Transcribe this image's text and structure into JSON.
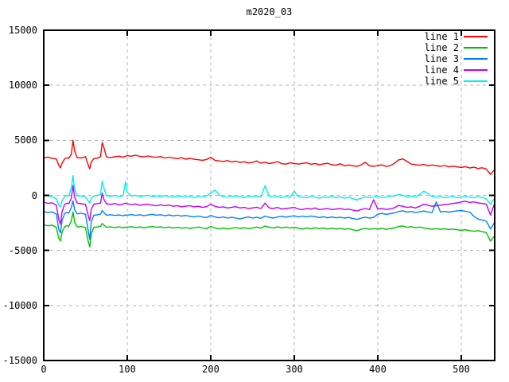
{
  "title": "m2020_03",
  "colors": {
    "background": "#ffffff",
    "border": "#000000",
    "grid": "#b4b4b4",
    "text": "#000000"
  },
  "chart_data": {
    "type": "line",
    "title": "m2020_03",
    "xlabel": "",
    "ylabel": "",
    "xlim": [
      0,
      540
    ],
    "ylim": [
      -15000,
      15000
    ],
    "xticks": [
      0,
      100,
      200,
      300,
      400,
      500
    ],
    "yticks": [
      -15000,
      -10000,
      -5000,
      0,
      5000,
      10000,
      15000
    ],
    "grid": "dashed",
    "legend_position": "top-right-inside",
    "x": [
      0,
      5,
      10,
      15,
      18,
      20,
      22,
      25,
      28,
      30,
      33,
      35,
      37,
      40,
      45,
      50,
      53,
      55,
      57,
      60,
      65,
      68,
      70,
      72,
      75,
      80,
      85,
      90,
      95,
      98,
      100,
      105,
      110,
      115,
      120,
      125,
      130,
      135,
      140,
      145,
      150,
      155,
      160,
      165,
      170,
      175,
      180,
      185,
      190,
      195,
      200,
      205,
      210,
      215,
      220,
      225,
      230,
      235,
      240,
      245,
      250,
      255,
      260,
      265,
      270,
      275,
      280,
      285,
      290,
      295,
      300,
      305,
      310,
      315,
      320,
      325,
      330,
      335,
      340,
      345,
      350,
      355,
      360,
      365,
      370,
      375,
      380,
      385,
      390,
      395,
      400,
      405,
      410,
      415,
      420,
      425,
      430,
      435,
      440,
      445,
      450,
      455,
      460,
      465,
      470,
      475,
      480,
      485,
      490,
      495,
      500,
      505,
      510,
      515,
      520,
      525,
      530,
      535,
      540
    ],
    "series": [
      {
        "name": "line 1",
        "color": "#ff0000",
        "values": [
          3400,
          3480,
          3370,
          3300,
          2750,
          2500,
          2950,
          3320,
          3420,
          3360,
          3750,
          5000,
          4050,
          3430,
          3400,
          3520,
          2800,
          2420,
          3050,
          3340,
          3400,
          3520,
          4800,
          4350,
          3500,
          3430,
          3520,
          3560,
          3480,
          3550,
          3620,
          3560,
          3650,
          3540,
          3500,
          3580,
          3490,
          3460,
          3530,
          3400,
          3470,
          3390,
          3340,
          3420,
          3290,
          3360,
          3280,
          3240,
          3190,
          3260,
          3460,
          3190,
          3130,
          3090,
          3160,
          3040,
          3110,
          2990,
          3060,
          2940,
          3010,
          3120,
          2930,
          3010,
          2890,
          2960,
          3070,
          2880,
          2840,
          2960,
          2900,
          2840,
          2910,
          2960,
          2830,
          2900,
          2790,
          2860,
          2920,
          2780,
          2740,
          2870,
          2690,
          2760,
          2700,
          2630,
          2770,
          3010,
          2690,
          2640,
          2710,
          2770,
          2630,
          2700,
          2910,
          3230,
          3310,
          3080,
          2840,
          2790,
          2740,
          2810,
          2690,
          2760,
          2700,
          2640,
          2710,
          2590,
          2660,
          2590,
          2540,
          2610,
          2490,
          2560,
          2440,
          2510,
          2390,
          1900,
          2360
        ]
      },
      {
        "name": "line 2",
        "color": "#00c000",
        "values": [
          -2680,
          -2760,
          -2700,
          -2900,
          -3900,
          -4150,
          -3300,
          -2850,
          -2750,
          -2820,
          -2300,
          -1500,
          -2400,
          -2880,
          -2820,
          -2920,
          -4100,
          -4700,
          -3500,
          -2900,
          -2860,
          -2800,
          -2550,
          -2700,
          -2900,
          -2860,
          -2920,
          -2860,
          -2940,
          -2880,
          -2900,
          -2840,
          -2920,
          -2860,
          -2950,
          -2880,
          -2820,
          -2900,
          -2860,
          -2940,
          -2880,
          -2960,
          -2900,
          -2980,
          -2920,
          -3000,
          -2940,
          -2880,
          -2960,
          -3020,
          -2820,
          -2960,
          -3040,
          -2960,
          -3060,
          -2980,
          -2920,
          -3000,
          -2940,
          -3020,
          -2960,
          -2880,
          -2980,
          -2780,
          -2900,
          -2960,
          -2860,
          -2950,
          -2880,
          -2960,
          -2900,
          -2990,
          -3060,
          -2960,
          -3040,
          -2940,
          -3020,
          -2960,
          -3060,
          -2980,
          -3060,
          -3000,
          -3080,
          -3020,
          -3120,
          -3200,
          -3080,
          -3000,
          -3080,
          -3020,
          -3060,
          -3000,
          -3080,
          -3020,
          -2960,
          -2830,
          -2780,
          -2900,
          -2840,
          -2940,
          -2880,
          -2960,
          -3020,
          -3080,
          -3020,
          -3080,
          -3040,
          -3100,
          -3060,
          -3120,
          -3180,
          -3120,
          -3200,
          -3260,
          -3200,
          -3300,
          -3380,
          -4150,
          -3640
        ]
      },
      {
        "name": "line 3",
        "color": "#0080ff",
        "values": [
          -1480,
          -1560,
          -1500,
          -1700,
          -3100,
          -3400,
          -2250,
          -1650,
          -1550,
          -1620,
          -1100,
          -500,
          -1300,
          -1680,
          -1620,
          -1720,
          -3100,
          -4000,
          -2400,
          -1800,
          -1760,
          -1700,
          -1380,
          -1560,
          -1800,
          -1760,
          -1820,
          -1780,
          -1850,
          -1780,
          -1800,
          -1740,
          -1820,
          -1760,
          -1850,
          -1780,
          -1720,
          -1800,
          -1760,
          -1840,
          -1780,
          -1860,
          -1800,
          -1880,
          -1820,
          -1900,
          -1960,
          -1880,
          -1960,
          -2020,
          -1820,
          -1960,
          -2040,
          -1960,
          -2060,
          -1980,
          -2060,
          -2140,
          -2040,
          -1960,
          -2060,
          -1980,
          -2080,
          -1880,
          -2000,
          -2060,
          -1960,
          -1900,
          -1980,
          -1900,
          -1860,
          -1960,
          -1880,
          -1960,
          -1880,
          -1940,
          -2020,
          -1940,
          -2040,
          -1960,
          -2040,
          -1980,
          -2060,
          -2000,
          -2100,
          -2180,
          -2060,
          -1980,
          -2060,
          -2000,
          -1700,
          -1640,
          -1720,
          -1660,
          -1600,
          -1450,
          -1400,
          -1520,
          -1460,
          -1560,
          -1500,
          -1420,
          -1500,
          -1560,
          -600,
          -1500,
          -1460,
          -1520,
          -1460,
          -1400,
          -1380,
          -1440,
          -1520,
          -1900,
          -2150,
          -2250,
          -2350,
          -3050,
          -2450
        ]
      },
      {
        "name": "line 4",
        "color": "#c000ff",
        "values": [
          -620,
          -720,
          -680,
          -880,
          -2200,
          -2600,
          -1450,
          -820,
          -700,
          -760,
          -250,
          900,
          -150,
          -700,
          -760,
          -820,
          -1750,
          -2300,
          -1250,
          -800,
          -740,
          -700,
          200,
          -350,
          -760,
          -820,
          -740,
          -860,
          -790,
          -700,
          -760,
          -840,
          -780,
          -900,
          -830,
          -800,
          -900,
          -950,
          -850,
          -940,
          -880,
          -990,
          -930,
          -1040,
          -980,
          -930,
          -1050,
          -990,
          -1090,
          -1030,
          -800,
          -1000,
          -1090,
          -1040,
          -1140,
          -1080,
          -1030,
          -1140,
          -1090,
          -1190,
          -1140,
          -1080,
          -1190,
          -700,
          -1140,
          -1190,
          -1090,
          -1240,
          -1190,
          -1140,
          -1090,
          -1240,
          -1290,
          -1190,
          -1240,
          -1140,
          -1290,
          -1240,
          -1190,
          -1290,
          -1240,
          -1190,
          -1290,
          -1240,
          -1340,
          -1420,
          -1290,
          -1190,
          -1290,
          -400,
          -1240,
          -1190,
          -1280,
          -1230,
          -1130,
          -900,
          -1000,
          -1090,
          -1040,
          -1140,
          -990,
          -800,
          -890,
          -990,
          -940,
          -890,
          -840,
          -790,
          -740,
          -690,
          -590,
          -530,
          -640,
          -590,
          -690,
          -740,
          -800,
          -1800,
          -690
        ]
      },
      {
        "name": "line 5",
        "color": "#00eeee",
        "values": [
          80,
          -20,
          -120,
          -300,
          -900,
          -1050,
          -480,
          -120,
          10,
          -60,
          700,
          1800,
          550,
          -30,
          -70,
          -120,
          -480,
          -700,
          -280,
          -60,
          10,
          90,
          1300,
          680,
          -20,
          -70,
          -10,
          -110,
          -30,
          1250,
          280,
          -60,
          10,
          -110,
          -40,
          10,
          -110,
          -50,
          -120,
          -10,
          -100,
          -160,
          -50,
          -110,
          -160,
          -90,
          -200,
          -100,
          -150,
          -40,
          200,
          480,
          60,
          -120,
          -160,
          -60,
          -150,
          -100,
          -200,
          -90,
          -150,
          -60,
          -160,
          880,
          -110,
          -160,
          -90,
          -210,
          -100,
          -160,
          380,
          -120,
          -160,
          -210,
          -100,
          -160,
          -260,
          -150,
          -210,
          -90,
          -200,
          -140,
          -260,
          -160,
          -300,
          -420,
          -260,
          -140,
          -210,
          -150,
          -100,
          -200,
          -140,
          -90,
          -40,
          90,
          -10,
          -110,
          -60,
          -160,
          80,
          380,
          180,
          -110,
          -160,
          -100,
          -210,
          -150,
          -100,
          -200,
          -160,
          -100,
          -160,
          -210,
          -110,
          -200,
          -300,
          -800,
          -240
        ]
      }
    ]
  }
}
